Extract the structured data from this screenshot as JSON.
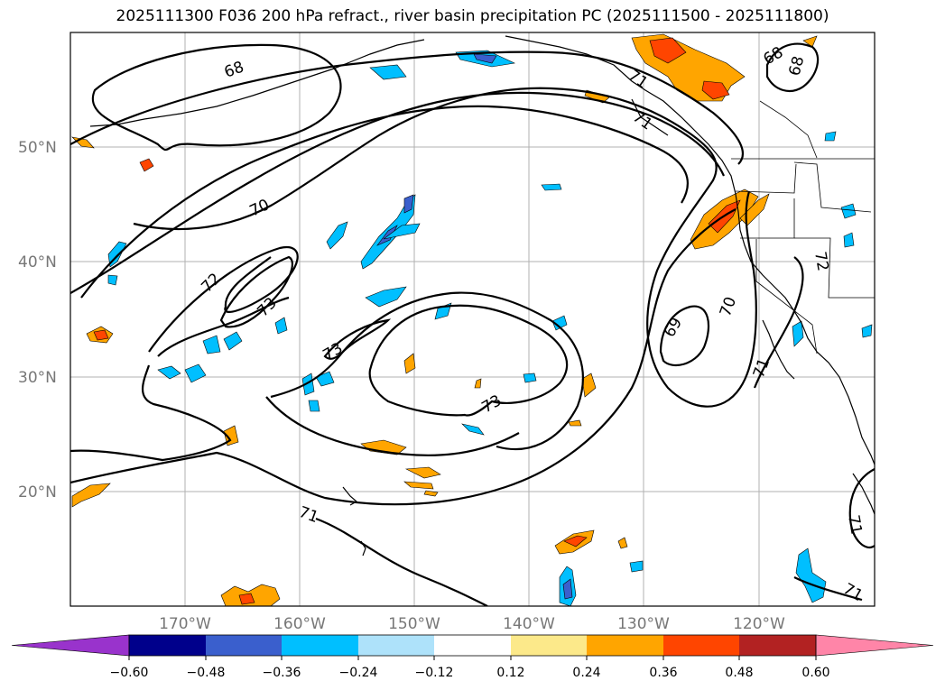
{
  "title": "2025111300 F036 200 hPa refract., river basin precipitation PC (2025111500 - 2025111800)",
  "map": {
    "lat_labels": [
      "50°N",
      "40°N",
      "30°N",
      "20°N"
    ],
    "lon_labels": [
      "170°W",
      "160°W",
      "150°W",
      "140°W",
      "130°W",
      "120°W"
    ],
    "contour_labels": [
      "68",
      "70",
      "72",
      "73",
      "73",
      "73",
      "71",
      "71",
      "71",
      "69",
      "71",
      "68",
      "68",
      "70",
      "72",
      "71",
      "71"
    ]
  },
  "colorbar": {
    "ticks": [
      "−0.60",
      "−0.48",
      "−0.36",
      "−0.24",
      "−0.12",
      "0.12",
      "0.24",
      "0.36",
      "0.48",
      "0.60"
    ],
    "colors": [
      "#9933cc",
      "#00008b",
      "#3a5fcd",
      "#00bfff",
      "#aee2fa",
      "#ffffff",
      "#fce98a",
      "#ffa500",
      "#ff4500",
      "#b22222",
      "#ff85a8"
    ]
  }
}
